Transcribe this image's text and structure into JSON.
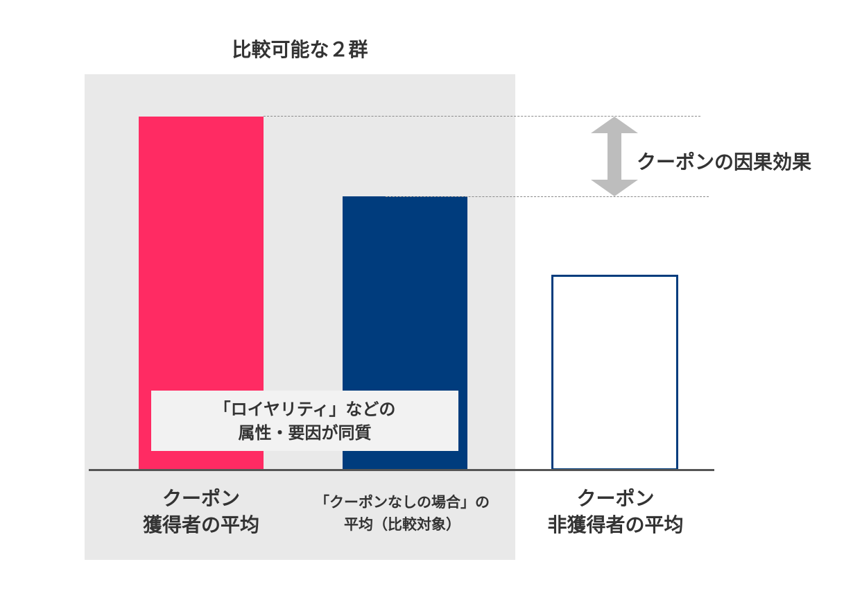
{
  "group": {
    "title": "比較可能な２群"
  },
  "bars": [
    {
      "id": "coupon-holders",
      "label_lines": [
        "クーポン",
        "獲得者の平均"
      ],
      "relative_value": 1.0,
      "color": "#ff2b63",
      "style": "filled"
    },
    {
      "id": "no-coupon-baseline",
      "label_lines": [
        "「クーポンなしの場合」の",
        "平均（比較対象）"
      ],
      "relative_value": 0.775,
      "color": "#003c7d",
      "style": "filled"
    },
    {
      "id": "coupon-non-holders",
      "label_lines": [
        "クーポン",
        "非獲得者の平均"
      ],
      "relative_value": 0.553,
      "color": "#003c7d",
      "style": "outline"
    }
  ],
  "effect": {
    "label": "クーポンの因果効果",
    "arrow_color": "#bdbdbd"
  },
  "note": {
    "lines": [
      "「ロイヤリティ」などの",
      "属性・要因が同質"
    ]
  },
  "colors": {
    "group_background": "#e9e9e9",
    "axis": "#555555",
    "dashed_line": "#8a8a8a",
    "text": "#333333"
  }
}
